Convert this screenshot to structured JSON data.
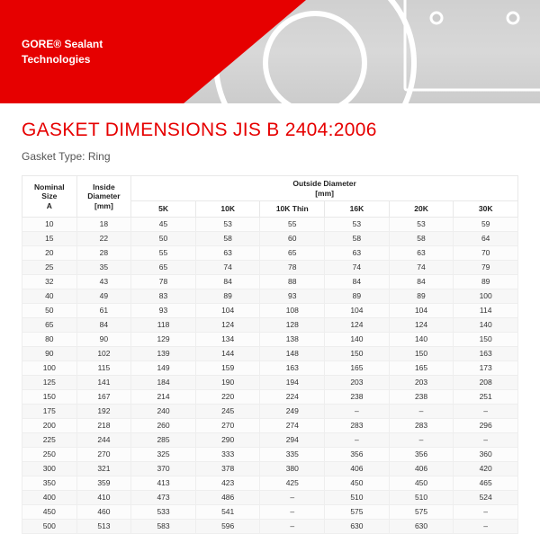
{
  "hero": {
    "brand_line1": "GORE® Sealant",
    "brand_line2": "Technologies"
  },
  "title": "GASKET DIMENSIONS JIS B 2404:2006",
  "subtitle": "Gasket Type: Ring",
  "colors": {
    "accent_red": "#e60000",
    "hero_bg_gray": "#d0d0d0",
    "row_alt": "#f7f7f7",
    "border": "#eeeeee"
  },
  "table": {
    "type": "table",
    "header": {
      "nominal": {
        "line1": "Nominal",
        "line2": "Size",
        "line3": "A"
      },
      "inside": {
        "line1": "Inside",
        "line2": "Diameter",
        "line3": "[mm]"
      },
      "outside_group": {
        "line1": "Outside Diameter",
        "line2": "[mm]"
      },
      "od_cols": [
        "5K",
        "10K",
        "10K Thin",
        "16K",
        "20K",
        "30K"
      ]
    },
    "rows": [
      [
        "10",
        "18",
        "45",
        "53",
        "55",
        "53",
        "53",
        "59"
      ],
      [
        "15",
        "22",
        "50",
        "58",
        "60",
        "58",
        "58",
        "64"
      ],
      [
        "20",
        "28",
        "55",
        "63",
        "65",
        "63",
        "63",
        "70"
      ],
      [
        "25",
        "35",
        "65",
        "74",
        "78",
        "74",
        "74",
        "79"
      ],
      [
        "32",
        "43",
        "78",
        "84",
        "88",
        "84",
        "84",
        "89"
      ],
      [
        "40",
        "49",
        "83",
        "89",
        "93",
        "89",
        "89",
        "100"
      ],
      [
        "50",
        "61",
        "93",
        "104",
        "108",
        "104",
        "104",
        "114"
      ],
      [
        "65",
        "84",
        "118",
        "124",
        "128",
        "124",
        "124",
        "140"
      ],
      [
        "80",
        "90",
        "129",
        "134",
        "138",
        "140",
        "140",
        "150"
      ],
      [
        "90",
        "102",
        "139",
        "144",
        "148",
        "150",
        "150",
        "163"
      ],
      [
        "100",
        "115",
        "149",
        "159",
        "163",
        "165",
        "165",
        "173"
      ],
      [
        "125",
        "141",
        "184",
        "190",
        "194",
        "203",
        "203",
        "208"
      ],
      [
        "150",
        "167",
        "214",
        "220",
        "224",
        "238",
        "238",
        "251"
      ],
      [
        "175",
        "192",
        "240",
        "245",
        "249",
        "–",
        "–",
        "–"
      ],
      [
        "200",
        "218",
        "260",
        "270",
        "274",
        "283",
        "283",
        "296"
      ],
      [
        "225",
        "244",
        "285",
        "290",
        "294",
        "–",
        "–",
        "–"
      ],
      [
        "250",
        "270",
        "325",
        "333",
        "335",
        "356",
        "356",
        "360"
      ],
      [
        "300",
        "321",
        "370",
        "378",
        "380",
        "406",
        "406",
        "420"
      ],
      [
        "350",
        "359",
        "413",
        "423",
        "425",
        "450",
        "450",
        "465"
      ],
      [
        "400",
        "410",
        "473",
        "486",
        "–",
        "510",
        "510",
        "524"
      ],
      [
        "450",
        "460",
        "533",
        "541",
        "–",
        "575",
        "575",
        "–"
      ],
      [
        "500",
        "513",
        "583",
        "596",
        "–",
        "630",
        "630",
        "–"
      ]
    ],
    "col_widths_pct": [
      11,
      11,
      13,
      13,
      13,
      13,
      13,
      13
    ],
    "header_fontsize_pt": 7,
    "body_fontsize_pt": 6.5,
    "header_bg": "#ffffff",
    "row_bg": "#fcfcfc",
    "row_alt_bg": "#f7f7f7"
  }
}
